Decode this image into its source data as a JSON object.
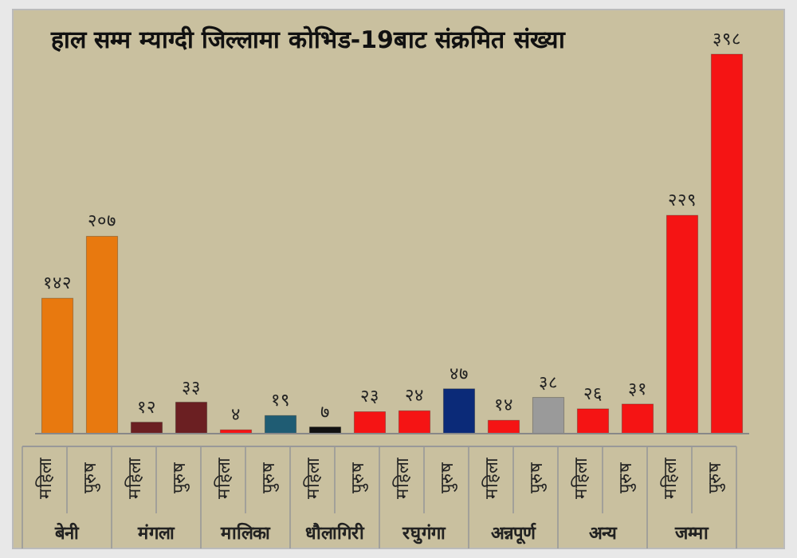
{
  "chart_data": {
    "type": "bar",
    "title": "हाल सम्म म्याग्दी जिल्लामा कोभिड-19बाट संक्रमित   संख्या",
    "categories": [
      "महिला",
      "पुरुष",
      "महिला",
      "पुरुष",
      "महिला",
      "पुरुष",
      "महिला",
      "पुरुष",
      "महिला",
      "पुरुष",
      "महिला",
      "पुरुष",
      "महिला",
      "पुरुष",
      "महिला",
      "पुरुष"
    ],
    "values": [
      142,
      207,
      12,
      33,
      4,
      19,
      7,
      23,
      24,
      47,
      14,
      38,
      26,
      31,
      229,
      398
    ],
    "colors": [
      "#e8790f",
      "#e8790f",
      "#6b1f22",
      "#6b1f22",
      "#f51414",
      "#1f5c73",
      "#111111",
      "#f51414",
      "#f51414",
      "#0b2a78",
      "#f51414",
      "#9a9a9a",
      "#f51414",
      "#f51414",
      "#f51414",
      "#f51414"
    ],
    "value_labels": [
      "१४२",
      "२०७",
      "१२",
      "३३",
      "४",
      "१९",
      "७",
      "२३",
      "२४",
      "४७",
      "१४",
      "३८",
      "२६",
      "३१",
      "२२९",
      "३९८"
    ],
    "annotations": [
      "बेनी",
      "मंगला",
      "मालिका",
      "धौलागिरी",
      "रघुगंगा",
      "अन्नपूर्ण",
      "अन्य",
      "जम्मा"
    ]
  }
}
